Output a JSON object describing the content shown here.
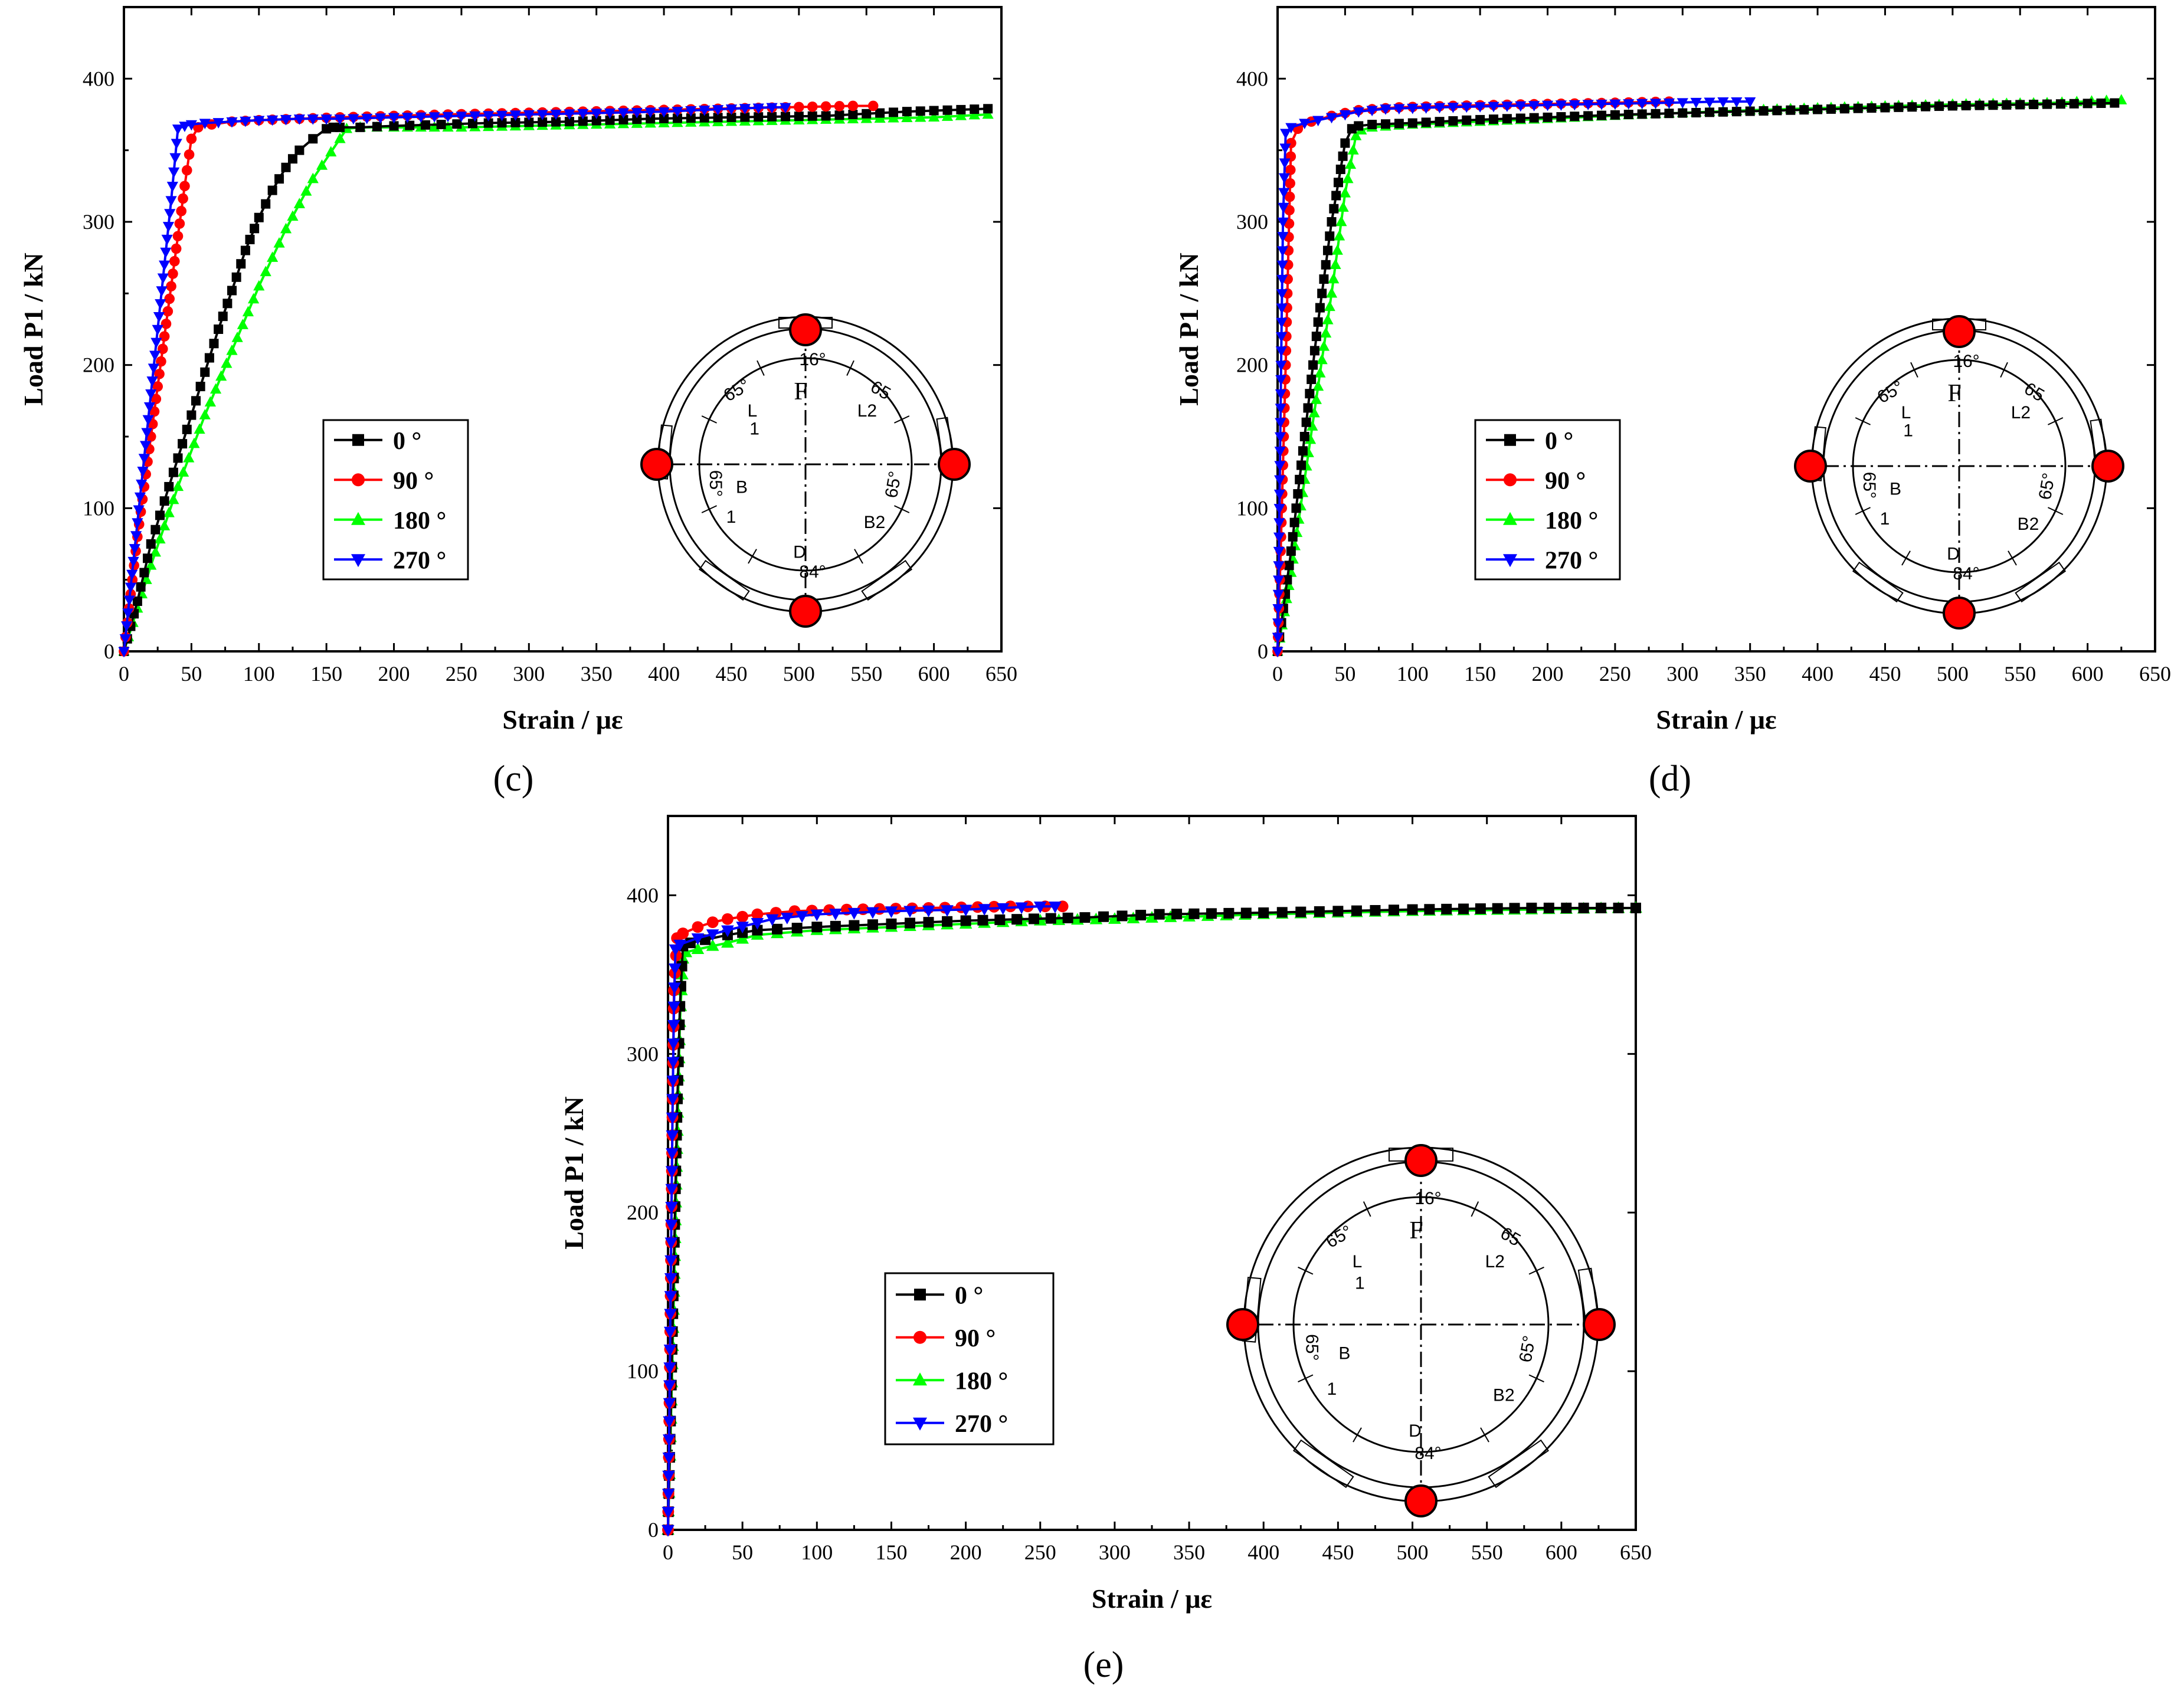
{
  "colors": {
    "0": "#000000",
    "90": "#ff0000",
    "180": "#00ff00",
    "270": "#0000ff",
    "marker_edge": "#000000",
    "marker_fill": "#ff0000"
  },
  "icons": {
    "0": "square-marker",
    "90": "circle-marker",
    "180": "triangle-up-marker",
    "270": "triangle-down-marker"
  },
  "inset": {
    "labels": {
      "top_angle": "16°",
      "F": "F",
      "L": "L",
      "L1": "1",
      "L2": "L2",
      "B": "B",
      "B1": "1",
      "B2": "B2",
      "D": "D",
      "bottom_angle": "84°",
      "a_tl": "65°",
      "a_tr": "65",
      "a_bl": "65°",
      "a_br": "65°"
    }
  },
  "chart_data": [
    {
      "type": "line",
      "panel": "(c)",
      "xlabel": "Strain / με",
      "ylabel": "Load P1 / kN",
      "xlim": [
        0,
        650
      ],
      "ylim": [
        0,
        450
      ],
      "xticks": [
        "0",
        "50",
        "100",
        "150",
        "200",
        "250",
        "300",
        "350",
        "400",
        "450",
        "500",
        "550",
        "600",
        "650"
      ],
      "yticks": [
        "0",
        "100",
        "200",
        "300",
        "400"
      ],
      "legend": [
        "0 °",
        "90 °",
        "180 °",
        "270 °"
      ],
      "series": [
        {
          "name": "0 °",
          "x": [
            0,
            10,
            20,
            30,
            40,
            50,
            60,
            70,
            80,
            90,
            100,
            110,
            120,
            130,
            140,
            150,
            155,
            160,
            175,
            200,
            235,
            270,
            330,
            390,
            450,
            520,
            580,
            640
          ],
          "y": [
            0,
            35,
            75,
            105,
            135,
            165,
            195,
            225,
            252,
            280,
            303,
            322,
            338,
            350,
            358,
            365,
            366,
            366,
            366,
            367,
            368,
            369,
            370,
            372,
            373,
            374,
            377,
            379
          ]
        },
        {
          "name": "90 °",
          "x": [
            0,
            5,
            10,
            15,
            20,
            25,
            30,
            35,
            40,
            45,
            50,
            55,
            65,
            80,
            100,
            130,
            160,
            200,
            240,
            290,
            340,
            390,
            440,
            490,
            540,
            555
          ],
          "y": [
            0,
            40,
            80,
            115,
            150,
            185,
            220,
            255,
            290,
            325,
            358,
            366,
            368,
            370,
            371,
            372,
            373,
            374,
            375,
            376,
            377,
            378,
            379,
            380,
            381,
            381
          ]
        },
        {
          "name": "180 °",
          "x": [
            0,
            20,
            40,
            60,
            80,
            100,
            120,
            140,
            160,
            165,
            175,
            200,
            250,
            300,
            350,
            400,
            450,
            500,
            550,
            600,
            640
          ],
          "y": [
            0,
            60,
            115,
            165,
            210,
            255,
            295,
            330,
            358,
            365,
            366,
            366,
            366,
            367,
            368,
            369,
            370,
            371,
            372,
            373,
            375
          ]
        },
        {
          "name": "270 °",
          "x": [
            0,
            5,
            10,
            15,
            20,
            25,
            30,
            35,
            40,
            45,
            50,
            60,
            80,
            100,
            130,
            160,
            200,
            250,
            300,
            350,
            400,
            450,
            480,
            490
          ],
          "y": [
            0,
            45,
            90,
            135,
            180,
            225,
            270,
            315,
            365,
            367,
            368,
            369,
            370,
            371,
            372,
            372,
            373,
            374,
            375,
            376,
            377,
            379,
            380,
            380
          ]
        }
      ]
    },
    {
      "type": "line",
      "panel": "(d)",
      "xlabel": "Strain / με",
      "ylabel": "Load P1 / kN",
      "xlim": [
        0,
        650
      ],
      "ylim": [
        0,
        450
      ],
      "xticks": [
        "0",
        "50",
        "100",
        "150",
        "200",
        "250",
        "300",
        "350",
        "400",
        "450",
        "500",
        "550",
        "600",
        "650"
      ],
      "yticks": [
        "0",
        "100",
        "200",
        "300",
        "400"
      ],
      "legend": [
        "0 °",
        "90 °",
        "180 °",
        "270 °"
      ],
      "series": [
        {
          "name": "0 °",
          "x": [
            0,
            10,
            20,
            30,
            40,
            50,
            55,
            60,
            70,
            100,
            140,
            200,
            260,
            340,
            420,
            500,
            560,
            620
          ],
          "y": [
            0,
            70,
            150,
            230,
            300,
            355,
            365,
            367,
            368,
            369,
            371,
            373,
            375,
            377,
            379,
            381,
            382,
            383
          ]
        },
        {
          "name": "90 °",
          "x": [
            0,
            2,
            4,
            6,
            8,
            10,
            15,
            25,
            40,
            60,
            90,
            130,
            180,
            240,
            290
          ],
          "y": [
            0,
            60,
            130,
            200,
            280,
            355,
            365,
            370,
            374,
            378,
            380,
            381,
            382,
            383,
            384
          ]
        },
        {
          "name": "180 °",
          "x": [
            0,
            10,
            20,
            30,
            40,
            50,
            58,
            62,
            70,
            100,
            150,
            200,
            270,
            350,
            420,
            500,
            570,
            625
          ],
          "y": [
            0,
            55,
            120,
            185,
            250,
            320,
            360,
            364,
            366,
            368,
            370,
            372,
            375,
            378,
            380,
            382,
            383,
            385
          ]
        },
        {
          "name": "270 °",
          "x": [
            0,
            1,
            2,
            3,
            4,
            6,
            10,
            20,
            40,
            60,
            80,
            120,
            170,
            220,
            280,
            330,
            350
          ],
          "y": [
            0,
            70,
            150,
            230,
            300,
            362,
            366,
            369,
            373,
            377,
            379,
            380,
            381,
            382,
            383,
            384,
            384
          ]
        }
      ]
    },
    {
      "type": "line",
      "panel": "(e)",
      "xlabel": "Strain / με",
      "ylabel": "Load P1 / kN",
      "xlim": [
        0,
        650
      ],
      "ylim": [
        0,
        450
      ],
      "xticks": [
        "0",
        "50",
        "100",
        "150",
        "200",
        "250",
        "300",
        "350",
        "400",
        "450",
        "500",
        "550",
        "600",
        "650"
      ],
      "yticks": [
        "0",
        "100",
        "200",
        "300",
        "400"
      ],
      "legend": [
        "0 °",
        "90 °",
        "180 °",
        "270 °"
      ],
      "series": [
        {
          "name": "0 °",
          "x": [
            0,
            2,
            4,
            6,
            8,
            10,
            15,
            25,
            40,
            60,
            100,
            150,
            200,
            280,
            330,
            400,
            500,
            580,
            650
          ],
          "y": [
            0,
            80,
            170,
            260,
            330,
            368,
            370,
            372,
            375,
            378,
            380,
            382,
            384,
            386,
            388,
            389,
            391,
            392,
            392
          ]
        },
        {
          "name": "90 °",
          "x": [
            0,
            1,
            2,
            3,
            4,
            6,
            10,
            20,
            30,
            40,
            60,
            85,
            120,
            175,
            230,
            265
          ],
          "y": [
            0,
            80,
            170,
            260,
            340,
            373,
            376,
            380,
            383,
            385,
            388,
            390,
            391,
            392,
            393,
            393
          ]
        },
        {
          "name": "180 °",
          "x": [
            0,
            2,
            4,
            6,
            8,
            10,
            12,
            20,
            40,
            60,
            100,
            150,
            200,
            250,
            300,
            400,
            500,
            580,
            650
          ],
          "y": [
            0,
            70,
            150,
            240,
            320,
            360,
            364,
            366,
            370,
            375,
            378,
            380,
            382,
            384,
            385,
            388,
            390,
            391,
            392
          ]
        },
        {
          "name": "270 °",
          "x": [
            0,
            1,
            2,
            3,
            4,
            5,
            8,
            20,
            40,
            70,
            100,
            150,
            200,
            250,
            260
          ],
          "y": [
            0,
            80,
            170,
            260,
            330,
            366,
            369,
            373,
            378,
            385,
            388,
            390,
            391,
            393,
            393
          ]
        }
      ]
    }
  ]
}
